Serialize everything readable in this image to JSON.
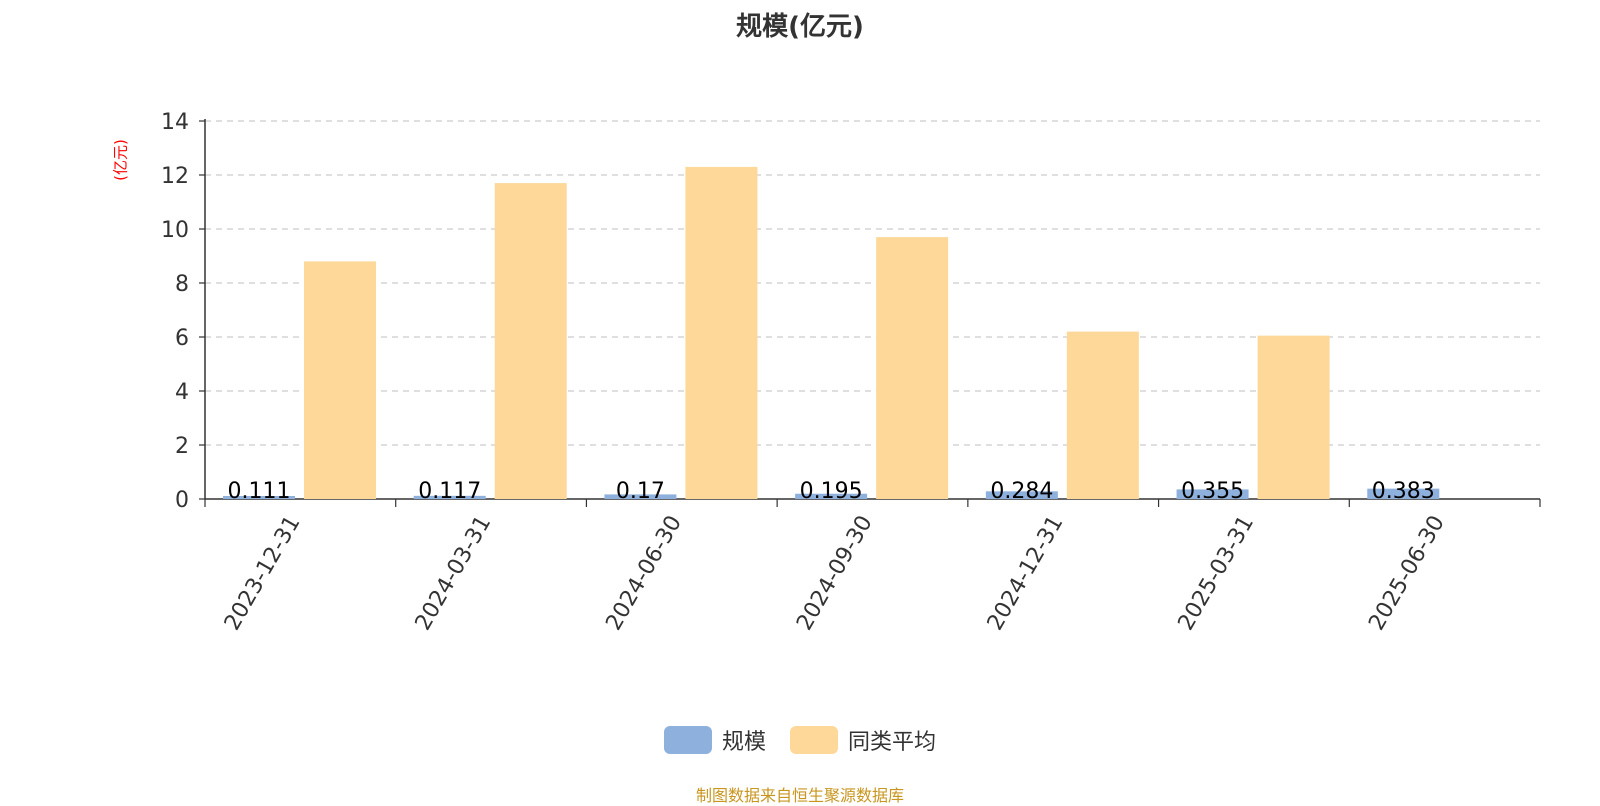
{
  "chart_data": {
    "type": "bar",
    "title": "规模(亿元)",
    "ylabel": "(亿元)",
    "categories": [
      "2023-12-31",
      "2024-03-31",
      "2024-06-30",
      "2024-09-30",
      "2024-12-31",
      "2025-03-31",
      "2025-06-30"
    ],
    "series": [
      {
        "name": "规模",
        "color": "#8eb0dc",
        "values": [
          0.111,
          0.117,
          0.17,
          0.195,
          0.284,
          0.355,
          0.383
        ],
        "labels": [
          "0.111",
          "0.117",
          "0.17",
          "0.195",
          "0.284",
          "0.355",
          "0.383"
        ]
      },
      {
        "name": "同类平均",
        "color": "#fdd899",
        "values": [
          8.8,
          11.7,
          12.3,
          9.7,
          6.2,
          6.05,
          null
        ]
      }
    ],
    "yticks": [
      "0",
      "2",
      "4",
      "6",
      "8",
      "10",
      "12",
      "14"
    ],
    "ylim": [
      0,
      14
    ],
    "grid": true,
    "legend_position": "bottom"
  },
  "footer": {
    "source": "制图数据来自恒生聚源数据库"
  }
}
